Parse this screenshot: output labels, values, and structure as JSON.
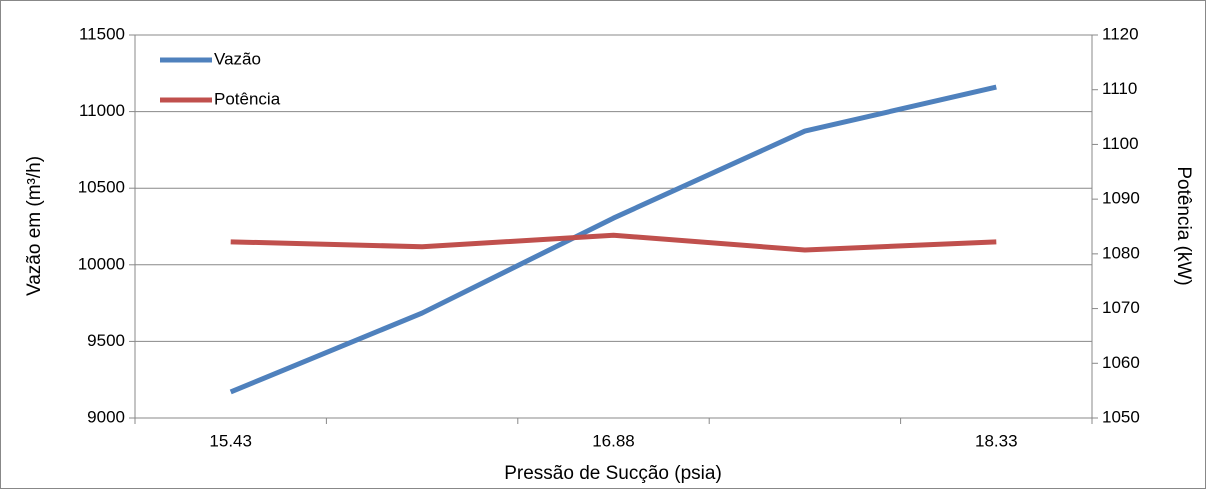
{
  "chart_data": {
    "type": "line",
    "categories": [
      "15.43",
      null,
      "16.88",
      null,
      "18.33"
    ],
    "series": [
      {
        "name": "Vazão",
        "color": "#4f81bd",
        "values": [
          9170,
          9685,
          10305,
          10873,
          11160
        ]
      },
      {
        "name": "Potência",
        "color": "#c0504d",
        "axis": "y2",
        "values": [
          1082.2,
          1081.3,
          1083.4,
          1080.7,
          1082.2
        ]
      }
    ],
    "ylim": [
      9000,
      11500
    ],
    "yticks": [
      9000,
      9500,
      10000,
      10500,
      11000,
      11500
    ],
    "y2lim": [
      1050,
      1120
    ],
    "y2ticks": [
      1050,
      1060,
      1070,
      1080,
      1090,
      1100,
      1110,
      1120
    ],
    "ylabel": "Vazão em (m³/h)",
    "y2label": "Potência (kW)",
    "xlabel": "Pressão de Sucção (psia)",
    "grid": true,
    "legend": "top-left"
  }
}
